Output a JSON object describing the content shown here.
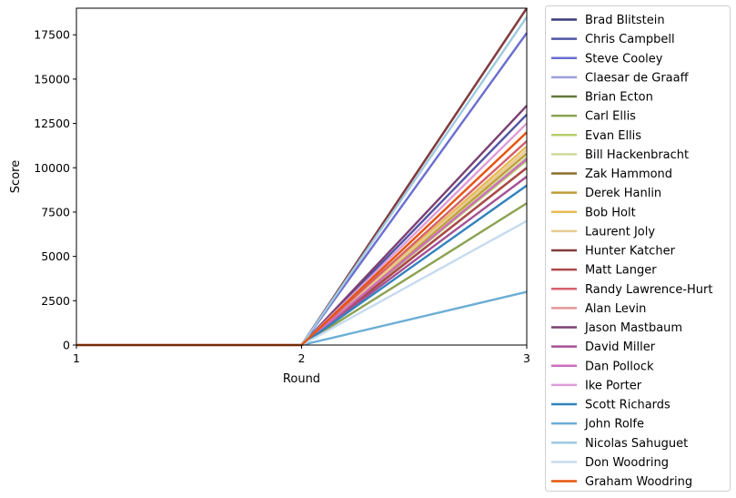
{
  "chart_data": {
    "type": "line",
    "title": "",
    "xlabel": "Round",
    "ylabel": "Score",
    "x": [
      1,
      2,
      3
    ],
    "xticks": [
      "1",
      "2",
      "3"
    ],
    "xlim": [
      1,
      3
    ],
    "ylim": [
      0,
      19000
    ],
    "yticks": [
      "0",
      "2500",
      "5000",
      "7500",
      "10000",
      "12500",
      "15000",
      "17500"
    ],
    "ytick_values": [
      0,
      2500,
      5000,
      7500,
      10000,
      12500,
      15000,
      17500
    ],
    "grid": false,
    "legend_placement": "outside-right",
    "series": [
      {
        "name": "Brad Blitstein",
        "color": "#393b79",
        "values": [
          0,
          0,
          19000
        ]
      },
      {
        "name": "Chris Campbell",
        "color": "#5254a3",
        "values": [
          0,
          0,
          13000
        ]
      },
      {
        "name": "Steve Cooley",
        "color": "#6b6ecf",
        "values": [
          0,
          0,
          17600
        ]
      },
      {
        "name": "Claesar de Graaff",
        "color": "#9c9ede",
        "values": [
          0,
          0,
          19000
        ]
      },
      {
        "name": "Brian Ecton",
        "color": "#637939",
        "values": [
          0,
          0,
          10000
        ]
      },
      {
        "name": "Carl Ellis",
        "color": "#8ca252",
        "values": [
          0,
          0,
          8000
        ]
      },
      {
        "name": "Evan Ellis",
        "color": "#b5cf6b",
        "values": [
          0,
          0,
          10400
        ]
      },
      {
        "name": "Bill Hackenbracht",
        "color": "#cedb9c",
        "values": [
          0,
          0,
          10600
        ]
      },
      {
        "name": "Zak Hammond",
        "color": "#8c6d31",
        "values": [
          0,
          0,
          10000
        ]
      },
      {
        "name": "Derek Hanlin",
        "color": "#bd9e39",
        "values": [
          0,
          0,
          10800
        ]
      },
      {
        "name": "Bob Holt",
        "color": "#e7ba52",
        "values": [
          0,
          0,
          11200
        ]
      },
      {
        "name": "Laurent Joly",
        "color": "#e7cb94",
        "values": [
          0,
          0,
          11000
        ]
      },
      {
        "name": "Hunter Katcher",
        "color": "#843c39",
        "values": [
          0,
          0,
          19000
        ]
      },
      {
        "name": "Matt Langer",
        "color": "#ad494a",
        "values": [
          0,
          0,
          10000
        ]
      },
      {
        "name": "Randy Lawrence-Hurt",
        "color": "#d6616b",
        "values": [
          0,
          0,
          11500
        ]
      },
      {
        "name": "Alan Levin",
        "color": "#e7969c",
        "values": [
          0,
          0,
          12000
        ]
      },
      {
        "name": "Jason Mastbaum",
        "color": "#7b4173",
        "values": [
          0,
          0,
          13500
        ]
      },
      {
        "name": "David Miller",
        "color": "#a55194",
        "values": [
          0,
          0,
          9500
        ]
      },
      {
        "name": "Dan Pollock",
        "color": "#ce6dbd",
        "values": [
          0,
          0,
          10500
        ]
      },
      {
        "name": "Ike Porter",
        "color": "#de9ed6",
        "values": [
          0,
          0,
          12500
        ]
      },
      {
        "name": "Scott Richards",
        "color": "#3182bd",
        "values": [
          0,
          0,
          9000
        ]
      },
      {
        "name": "John Rolfe",
        "color": "#6baed6",
        "values": [
          0,
          0,
          3000
        ]
      },
      {
        "name": "Nicolas Sahuguet",
        "color": "#9ecae1",
        "values": [
          0,
          0,
          18500
        ]
      },
      {
        "name": "Don Woodring",
        "color": "#c6dbef",
        "values": [
          0,
          0,
          7000
        ]
      },
      {
        "name": "Graham Woodring",
        "color": "#e6550d",
        "values": [
          0,
          0,
          12000
        ]
      }
    ]
  }
}
